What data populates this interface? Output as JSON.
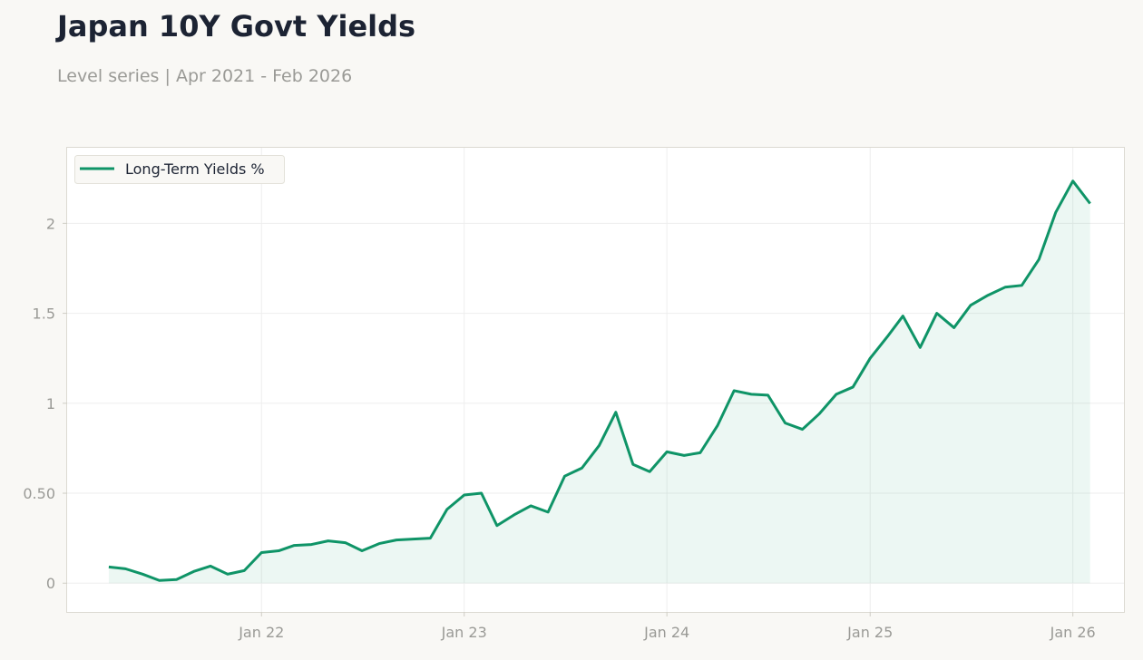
{
  "header": {
    "title": "Japan 10Y Govt Yields",
    "subtitle": "Level series | Apr 2021 - Feb 2026"
  },
  "colors": {
    "line": "#0f9467",
    "fill": "#0f9467",
    "grid": "#eeeeee",
    "frame": "#dcdad2"
  },
  "chart_data": {
    "type": "area",
    "legend_position": "top-left",
    "grid": true,
    "x_start": "2021-04",
    "x_step": "month",
    "xlim": [
      "2021-01-16",
      "2026-04-03"
    ],
    "ylim": [
      -0.16,
      2.42
    ],
    "x_ticks": [
      {
        "label": "Jan 22",
        "date": "2022-01"
      },
      {
        "label": "Jan 23",
        "date": "2023-01"
      },
      {
        "label": "Jan 24",
        "date": "2024-01"
      },
      {
        "label": "Jan 25",
        "date": "2025-01"
      },
      {
        "label": "Jan 26",
        "date": "2026-01"
      }
    ],
    "y_ticks": [
      {
        "label": "0",
        "value": 0
      },
      {
        "label": "0.50",
        "value": 0.5
      },
      {
        "label": "1",
        "value": 1
      },
      {
        "label": "1.5",
        "value": 1.5
      },
      {
        "label": "2",
        "value": 2
      }
    ],
    "series": [
      {
        "name": "Long-Term Yields %",
        "values": [
          0.09,
          0.08,
          0.05,
          0.015,
          0.02,
          0.065,
          0.095,
          0.05,
          0.07,
          0.17,
          0.18,
          0.21,
          0.215,
          0.235,
          0.225,
          0.18,
          0.22,
          0.24,
          0.245,
          0.25,
          0.41,
          0.49,
          0.5,
          0.32,
          0.38,
          0.43,
          0.395,
          0.595,
          0.64,
          0.765,
          0.95,
          0.66,
          0.62,
          0.73,
          0.71,
          0.725,
          0.875,
          1.07,
          1.05,
          1.045,
          0.89,
          0.855,
          0.94,
          1.05,
          1.09,
          1.25,
          1.37,
          1.485,
          1.31,
          1.5,
          1.42,
          1.545,
          1.6,
          1.645,
          1.655,
          1.8,
          2.06,
          2.235,
          2.11
        ]
      }
    ]
  }
}
